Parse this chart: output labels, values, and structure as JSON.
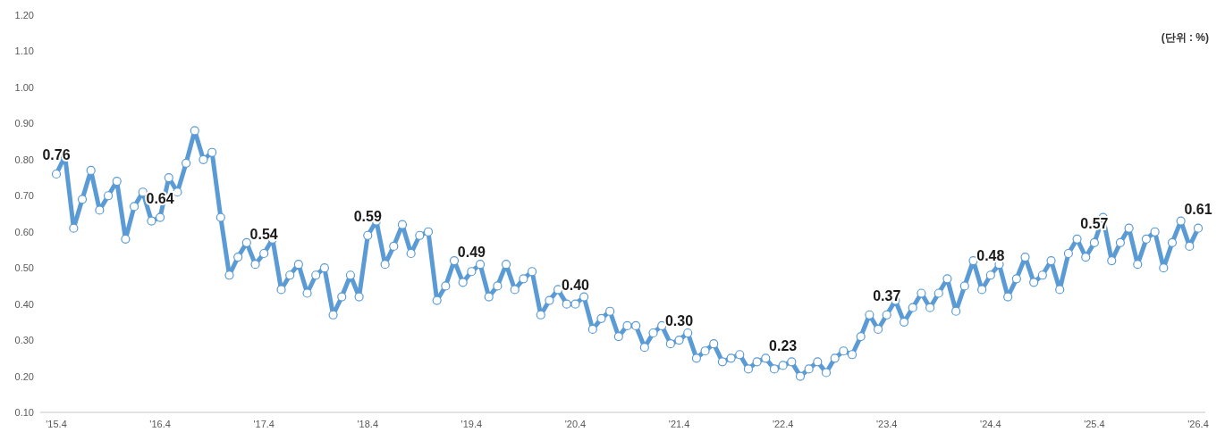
{
  "chart_data": {
    "type": "line",
    "categories": [
      "'15.4",
      null,
      null,
      null,
      null,
      null,
      null,
      null,
      null,
      null,
      null,
      null,
      "'16.4",
      null,
      null,
      null,
      null,
      null,
      null,
      null,
      null,
      null,
      null,
      null,
      "'17.4",
      null,
      null,
      null,
      null,
      null,
      null,
      null,
      null,
      null,
      null,
      null,
      "'18.4",
      null,
      null,
      null,
      null,
      null,
      null,
      null,
      null,
      null,
      null,
      null,
      "'19.4",
      null,
      null,
      null,
      null,
      null,
      null,
      null,
      null,
      null,
      null,
      null,
      "'20.4",
      null,
      null,
      null,
      null,
      null,
      null,
      null,
      null,
      null,
      null,
      null,
      "'21.4",
      null,
      null,
      null,
      null,
      null,
      null,
      null,
      null,
      null,
      null,
      null,
      "'22.4",
      null,
      null,
      null,
      null,
      null,
      null,
      null,
      null,
      null,
      null,
      null,
      "'23.4",
      null,
      null,
      null,
      null,
      null,
      null,
      null,
      null,
      null,
      null,
      null,
      "'24.4",
      null,
      null,
      null,
      null,
      null,
      null,
      null,
      null,
      null,
      null,
      null,
      "'25.4",
      null,
      null,
      null,
      null,
      null,
      null,
      null,
      null,
      null,
      null,
      null,
      "'26.4"
    ],
    "values": [
      0.76,
      0.81,
      0.61,
      0.69,
      0.77,
      0.66,
      0.7,
      0.74,
      0.58,
      0.67,
      0.71,
      0.63,
      0.64,
      0.75,
      0.71,
      0.79,
      0.88,
      0.8,
      0.82,
      0.64,
      0.48,
      0.53,
      0.57,
      0.51,
      0.54,
      0.58,
      0.44,
      0.48,
      0.51,
      0.43,
      0.48,
      0.5,
      0.37,
      0.42,
      0.48,
      0.42,
      0.59,
      0.63,
      0.51,
      0.56,
      0.62,
      0.54,
      0.59,
      0.6,
      0.41,
      0.45,
      0.52,
      0.46,
      0.49,
      0.51,
      0.42,
      0.45,
      0.51,
      0.44,
      0.47,
      0.49,
      0.37,
      0.41,
      0.44,
      0.4,
      0.4,
      0.42,
      0.33,
      0.36,
      0.38,
      0.31,
      0.34,
      0.34,
      0.28,
      0.32,
      0.34,
      0.29,
      0.3,
      0.32,
      0.25,
      0.27,
      0.29,
      0.24,
      0.25,
      0.26,
      0.22,
      0.24,
      0.25,
      0.22,
      0.23,
      0.24,
      0.2,
      0.22,
      0.24,
      0.21,
      0.25,
      0.27,
      0.26,
      0.31,
      0.37,
      0.33,
      0.37,
      0.41,
      0.35,
      0.39,
      0.43,
      0.39,
      0.43,
      0.47,
      0.38,
      0.45,
      0.52,
      0.44,
      0.48,
      0.51,
      0.42,
      0.47,
      0.53,
      0.46,
      0.48,
      0.52,
      0.44,
      0.54,
      0.58,
      0.53,
      0.57,
      0.64,
      0.52,
      0.57,
      0.61,
      0.51,
      0.58,
      0.6,
      0.5,
      0.57,
      0.63,
      0.56,
      0.61
    ],
    "value_labels": [
      "0.76",
      null,
      null,
      null,
      null,
      null,
      null,
      null,
      null,
      null,
      null,
      null,
      "0.64",
      null,
      null,
      null,
      null,
      null,
      null,
      null,
      null,
      null,
      null,
      null,
      "0.54",
      null,
      null,
      null,
      null,
      null,
      null,
      null,
      null,
      null,
      null,
      null,
      "0.59",
      null,
      null,
      null,
      null,
      null,
      null,
      null,
      null,
      null,
      null,
      null,
      "0.49",
      null,
      null,
      null,
      null,
      null,
      null,
      null,
      null,
      null,
      null,
      null,
      "0.40",
      null,
      null,
      null,
      null,
      null,
      null,
      null,
      null,
      null,
      null,
      null,
      "0.30",
      null,
      null,
      null,
      null,
      null,
      null,
      null,
      null,
      null,
      null,
      null,
      "0.23",
      null,
      null,
      null,
      null,
      null,
      null,
      null,
      null,
      null,
      null,
      null,
      "0.37",
      null,
      null,
      null,
      null,
      null,
      null,
      null,
      null,
      null,
      null,
      null,
      "0.48",
      null,
      null,
      null,
      null,
      null,
      null,
      null,
      null,
      null,
      null,
      null,
      "0.57",
      null,
      null,
      null,
      null,
      null,
      null,
      null,
      null,
      null,
      null,
      null,
      "0.61"
    ],
    "color": "#5b9bd5",
    "marker": "circle",
    "ylim": [
      0.1,
      1.2
    ],
    "yticks": [
      {
        "value": 0.1,
        "label": "0.10"
      },
      {
        "value": 0.2,
        "label": "0.20"
      },
      {
        "value": 0.3,
        "label": "0.30"
      },
      {
        "value": 0.4,
        "label": "0.40"
      },
      {
        "value": 0.5,
        "label": "0.50"
      },
      {
        "value": 0.6,
        "label": "0.60"
      },
      {
        "value": 0.7,
        "label": "0.70"
      },
      {
        "value": 0.8,
        "label": "0.80"
      },
      {
        "value": 0.9,
        "label": "0.90"
      },
      {
        "value": 1.0,
        "label": "1.00"
      },
      {
        "value": 1.1,
        "label": "1.10"
      },
      {
        "value": 1.2,
        "label": "1.20"
      }
    ],
    "annotations": [
      "(단위 : %)"
    ]
  }
}
